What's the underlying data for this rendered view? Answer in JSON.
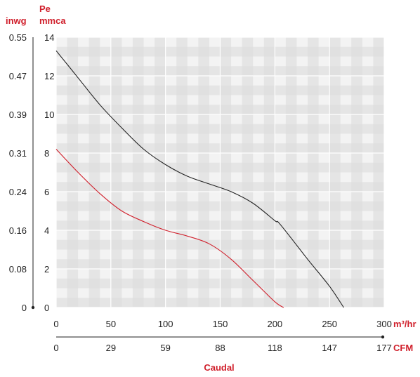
{
  "chart_data": {
    "type": "line",
    "title": "",
    "y_units_left": "inwg",
    "y_label_top": "Pe",
    "y_units": "mmca",
    "x_units": "m³/hr",
    "x2_units": "CFM",
    "xlabel": "Caudal",
    "xlim": [
      0,
      300
    ],
    "ylim": [
      0,
      14
    ],
    "x_ticks": [
      "0",
      "50",
      "100",
      "150",
      "200",
      "250",
      "300"
    ],
    "x2_ticks": [
      "0",
      "29",
      "59",
      "88",
      "118",
      "147",
      "177"
    ],
    "y_ticks": [
      "0",
      "2",
      "4",
      "6",
      "8",
      "10",
      "12",
      "14"
    ],
    "y2_ticks": [
      "0",
      "0.08",
      "0.16",
      "0.24",
      "0.31",
      "0.39",
      "0.47",
      "0.55"
    ],
    "grid": true,
    "series": [
      {
        "color": "#222222",
        "x": [
          0,
          20,
          40,
          60,
          80,
          100,
          120,
          140,
          160,
          180,
          200,
          205,
          230,
          250,
          263
        ],
        "y": [
          13.3,
          11.9,
          10.5,
          9.3,
          8.2,
          7.4,
          6.8,
          6.4,
          6.0,
          5.4,
          4.5,
          4.3,
          2.5,
          1.1,
          0.0
        ]
      },
      {
        "color": "#d0202c",
        "x": [
          0,
          20,
          40,
          60,
          80,
          100,
          120,
          140,
          160,
          180,
          200,
          208
        ],
        "y": [
          8.2,
          7.0,
          5.9,
          5.0,
          4.45,
          4.0,
          3.7,
          3.3,
          2.5,
          1.4,
          0.3,
          0.0
        ]
      }
    ]
  }
}
